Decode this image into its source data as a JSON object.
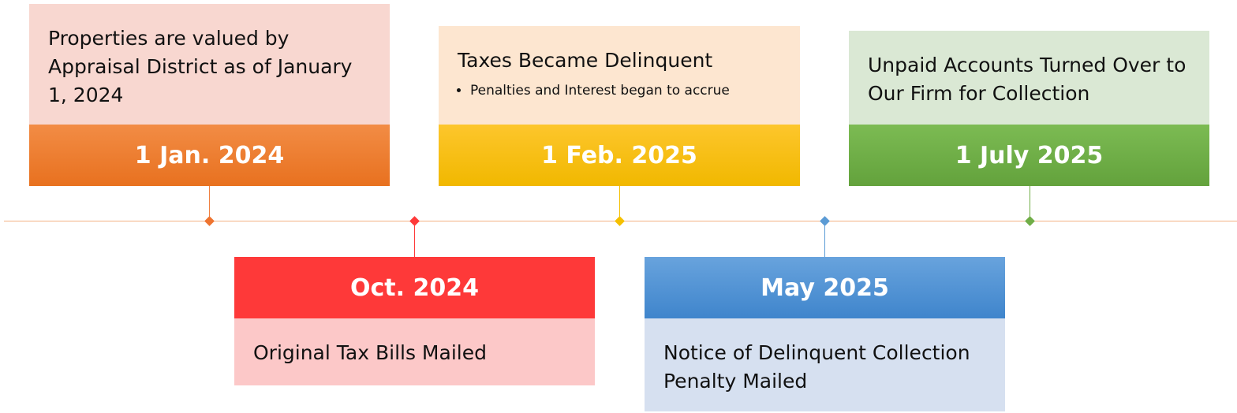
{
  "events": [
    {
      "date": "1 Jan. 2024",
      "description": "Properties are valued by Appraisal District as of January 1, 2024"
    },
    {
      "date": "Oct. 2024",
      "description": "Original Tax Bills Mailed"
    },
    {
      "date": "1 Feb. 2025",
      "description": "Taxes Became Delinquent",
      "bullets": [
        "Penalties and Interest began to accrue"
      ]
    },
    {
      "date": "May 2025",
      "description": "Notice of Delinquent Collection Penalty Mailed"
    },
    {
      "date": "1 July 2025",
      "description": "Unpaid Accounts Turned Over to Our Firm for Collection"
    }
  ]
}
